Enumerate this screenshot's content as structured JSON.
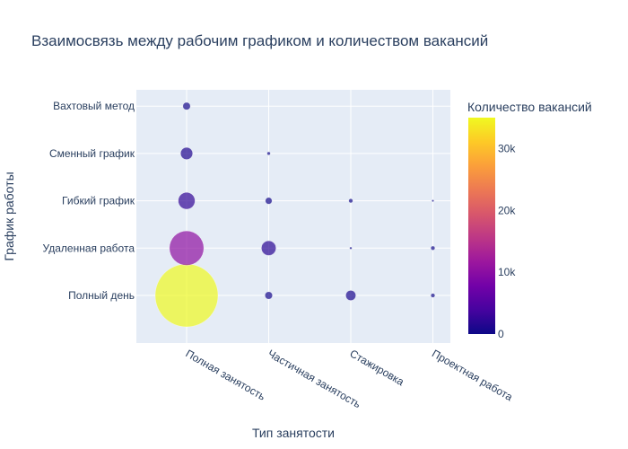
{
  "chart_data": {
    "type": "scatter",
    "title": "Взаимосвязь между рабочим графиком и количеством вакансий",
    "xlabel": "Тип занятости",
    "ylabel": "График работы",
    "x_categories": [
      "Полная занятость",
      "Частичная занятость",
      "Стажировка",
      "Проектная работа"
    ],
    "y_categories": [
      "Полный день",
      "Удаленная работа",
      "Гибкий график",
      "Сменный график",
      "Вахтовый метод"
    ],
    "points": [
      {
        "x": "Полная занятость",
        "y": "Полный день",
        "value": 35000
      },
      {
        "x": "Полная занятость",
        "y": "Удаленная работа",
        "value": 10500
      },
      {
        "x": "Полная занятость",
        "y": "Гибкий график",
        "value": 2500
      },
      {
        "x": "Полная занятость",
        "y": "Сменный график",
        "value": 1300
      },
      {
        "x": "Полная занятость",
        "y": "Вахтовый метод",
        "value": 500
      },
      {
        "x": "Частичная занятость",
        "y": "Полный день",
        "value": 500
      },
      {
        "x": "Частичная занятость",
        "y": "Удаленная работа",
        "value": 1900
      },
      {
        "x": "Частичная занятость",
        "y": "Гибкий график",
        "value": 400
      },
      {
        "x": "Частичная занятость",
        "y": "Сменный график",
        "value": 100
      },
      {
        "x": "Стажировка",
        "y": "Полный день",
        "value": 900
      },
      {
        "x": "Стажировка",
        "y": "Удаленная работа",
        "value": 50
      },
      {
        "x": "Стажировка",
        "y": "Гибкий график",
        "value": 150
      },
      {
        "x": "Проектная работа",
        "y": "Полный день",
        "value": 150
      },
      {
        "x": "Проектная работа",
        "y": "Удаленная работа",
        "value": 150
      },
      {
        "x": "Проектная работа",
        "y": "Гибкий график",
        "value": 20
      }
    ],
    "colorbar": {
      "title": "Количество вакансий",
      "min": 0,
      "max": 35000,
      "ticks": [
        {
          "value": 0,
          "label": "0"
        },
        {
          "value": 10000,
          "label": "10k"
        },
        {
          "value": 20000,
          "label": "20k"
        },
        {
          "value": 30000,
          "label": "30k"
        }
      ],
      "colorscale": [
        "#0d0887",
        "#46039f",
        "#7201a8",
        "#9c179e",
        "#bd3786",
        "#d8576b",
        "#ed7953",
        "#fb9f3a",
        "#fdca26",
        "#f0f921"
      ]
    },
    "marker_opacity": 0.7,
    "grid": true,
    "plot_background": "#e5ecf6"
  }
}
